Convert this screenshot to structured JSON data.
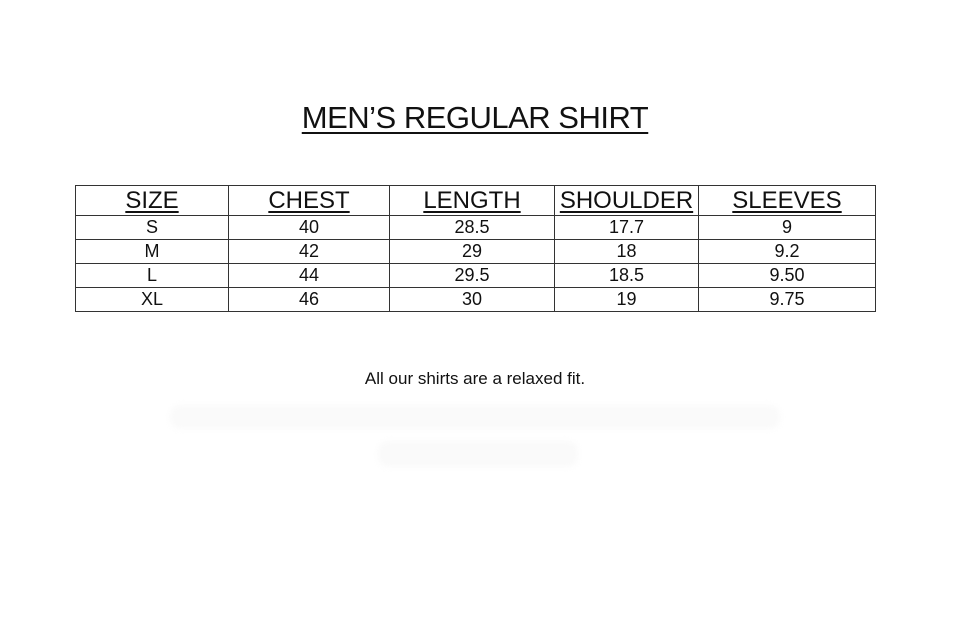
{
  "title": "MEN’S REGULAR SHIRT",
  "table": {
    "headers": [
      "SIZE",
      "CHEST",
      "LENGTH",
      "SHOULDER",
      "SLEEVES"
    ],
    "rows": [
      [
        "S",
        "40",
        "28.5",
        "17.7",
        "9"
      ],
      [
        "M",
        "42",
        "29",
        "18",
        "9.2"
      ],
      [
        "L",
        "44",
        "29.5",
        "18.5",
        "9.50"
      ],
      [
        "XL",
        "46",
        "30",
        "19",
        "9.75"
      ]
    ]
  },
  "note": "All our shirts are a relaxed fit."
}
